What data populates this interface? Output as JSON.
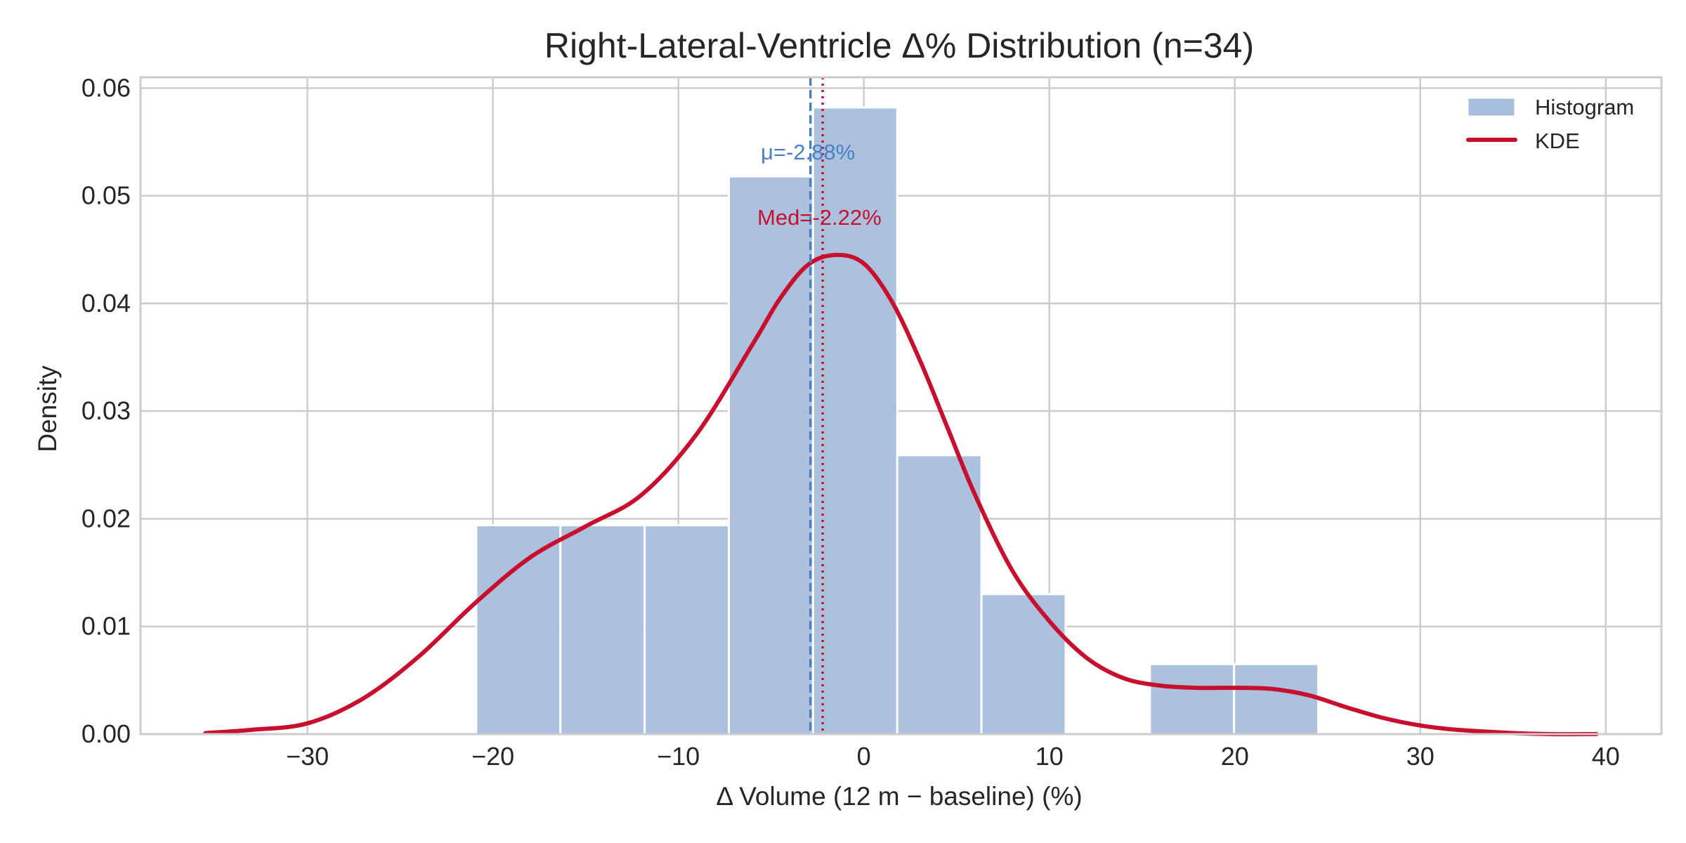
{
  "chart_data": {
    "type": "histogram",
    "title": "Right-Lateral-Ventricle  Δ% Distribution  (n=34)",
    "xlabel": "Δ Volume (12 m − baseline) (%)",
    "ylabel": "Density",
    "xlim": [
      -39,
      43
    ],
    "ylim": [
      0,
      0.061
    ],
    "xticks": [
      -30,
      -20,
      -10,
      0,
      10,
      20,
      30,
      40
    ],
    "xtick_labels": [
      "−30",
      "−20",
      "−10",
      "0",
      "10",
      "20",
      "30",
      "40"
    ],
    "yticks": [
      0.0,
      0.01,
      0.02,
      0.03,
      0.04,
      0.05,
      0.06
    ],
    "ytick_labels": [
      "0.00",
      "0.01",
      "0.02",
      "0.03",
      "0.04",
      "0.05",
      "0.06"
    ],
    "grid": true,
    "legend_position": "top-right",
    "histogram": {
      "name": "Histogram",
      "color": "#a7bedc",
      "bin_edges": [
        -20.9,
        -16.36,
        -11.82,
        -7.28,
        -2.74,
        1.8,
        6.34,
        10.88,
        15.42,
        19.96,
        24.5
      ],
      "densities": [
        0.0194,
        0.0194,
        0.0194,
        0.0518,
        0.0582,
        0.0259,
        0.013,
        0.0,
        0.0065,
        0.0065
      ]
    },
    "kde": {
      "name": "KDE",
      "color": "#c8102e",
      "x": [
        -35.5,
        -33,
        -30,
        -27,
        -24,
        -21,
        -18,
        -15,
        -12,
        -9,
        -6,
        -4.5,
        -3,
        -1.5,
        0,
        1.5,
        3,
        4.5,
        6,
        8,
        10,
        12,
        14,
        16,
        18,
        20,
        22,
        24,
        26,
        28,
        30,
        32,
        35,
        37,
        39.5
      ],
      "y": [
        0.0001,
        0.0004,
        0.001,
        0.0033,
        0.0072,
        0.0121,
        0.0164,
        0.0193,
        0.0222,
        0.0279,
        0.0362,
        0.0405,
        0.0436,
        0.0445,
        0.0437,
        0.0402,
        0.0348,
        0.0285,
        0.0222,
        0.0152,
        0.0105,
        0.0071,
        0.0052,
        0.0045,
        0.0043,
        0.0043,
        0.0042,
        0.0036,
        0.0025,
        0.0015,
        0.0008,
        0.0004,
        0.0001,
        0.0,
        0.0
      ]
    },
    "mean": {
      "value": -2.88,
      "label": "μ=-2.88%",
      "color": "#4a7fc1",
      "style": "dashed"
    },
    "median": {
      "value": -2.22,
      "label": "Med=-2.22%",
      "color": "#c8102e",
      "style": "dotted"
    },
    "colors": {
      "grid": "#cccccc",
      "spine": "#cccccc",
      "text": "#262626"
    }
  }
}
